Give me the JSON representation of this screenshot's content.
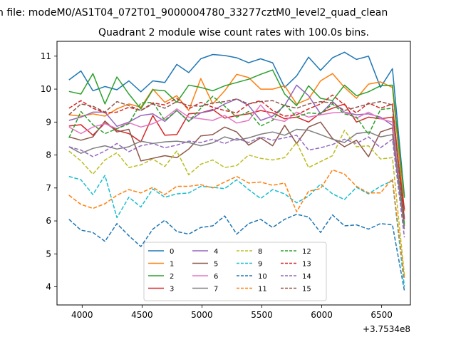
{
  "chart_data": {
    "type": "line",
    "suptitle": "n file: modeM0/AS1T04_072T01_9000004780_33277cztM0_level2_quad_clean",
    "title": "Quadrant 2 module wise count rates with 100.0s bins.",
    "xlabel": "",
    "ylabel": "",
    "x_offset_label": "+3.7534e8",
    "xlim": [
      3790,
      6740
    ],
    "ylim": [
      3.45,
      11.45
    ],
    "xticks": [
      4000,
      4500,
      5000,
      5500,
      6000,
      6500
    ],
    "yticks": [
      4,
      5,
      6,
      7,
      8,
      9,
      10,
      11
    ],
    "grid": false,
    "legend_position": "lower center",
    "legend_columns": 4,
    "x": [
      3890,
      3990,
      4090,
      4190,
      4290,
      4390,
      4490,
      4590,
      4690,
      4790,
      4890,
      4990,
      5090,
      5190,
      5290,
      5390,
      5490,
      5590,
      5690,
      5790,
      5890,
      5990,
      6090,
      6190,
      6290,
      6390,
      6490,
      6590,
      6690
    ],
    "series": [
      {
        "name": "0",
        "color": "#1f77b4",
        "dash": "solid",
        "values": [
          10.28,
          10.55,
          9.95,
          10.08,
          9.98,
          10.25,
          9.92,
          10.25,
          10.2,
          10.75,
          10.5,
          10.92,
          11.05,
          11.02,
          10.95,
          10.8,
          10.92,
          10.8,
          10.05,
          10.4,
          10.97,
          10.57,
          10.95,
          11.12,
          10.9,
          11.0,
          10.05,
          10.62,
          6.75
        ]
      },
      {
        "name": "1",
        "color": "#ff7f0e",
        "dash": "solid",
        "values": [
          9.22,
          9.18,
          9.25,
          9.18,
          9.4,
          9.55,
          9.45,
          10.0,
          9.6,
          9.8,
          9.35,
          10.32,
          9.55,
          9.95,
          10.45,
          10.35,
          10.0,
          10.0,
          10.1,
          9.55,
          9.7,
          10.25,
          10.47,
          10.05,
          9.72,
          10.15,
          10.22,
          10.05,
          6.3
        ]
      },
      {
        "name": "2",
        "color": "#2ca02c",
        "dash": "solid",
        "values": [
          9.93,
          9.85,
          10.47,
          9.55,
          10.37,
          9.85,
          9.4,
          9.98,
          9.95,
          9.6,
          10.12,
          10.05,
          9.95,
          10.1,
          10.2,
          10.3,
          10.45,
          10.58,
          9.85,
          9.5,
          10.1,
          9.72,
          9.65,
          10.12,
          9.8,
          9.92,
          10.1,
          10.12,
          6.7
        ]
      },
      {
        "name": "3",
        "color": "#d62728",
        "dash": "solid",
        "values": [
          8.88,
          8.92,
          8.6,
          8.97,
          8.75,
          8.65,
          8.4,
          9.2,
          8.6,
          8.62,
          9.25,
          9.28,
          9.38,
          9.12,
          9.2,
          9.25,
          9.35,
          9.28,
          9.1,
          9.15,
          9.0,
          9.28,
          9.42,
          9.55,
          9.0,
          9.15,
          9.1,
          9.15,
          6.35
        ]
      },
      {
        "name": "4",
        "color": "#9467bd",
        "dash": "solid",
        "values": [
          9.05,
          9.15,
          9.3,
          9.3,
          8.87,
          9.0,
          9.2,
          9.25,
          9.02,
          9.35,
          9.03,
          9.28,
          9.35,
          9.55,
          9.7,
          9.5,
          9.05,
          9.18,
          9.5,
          10.12,
          9.8,
          9.25,
          9.62,
          9.3,
          9.22,
          9.25,
          9.15,
          8.9,
          6.1
        ]
      },
      {
        "name": "5",
        "color": "#8c564b",
        "dash": "solid",
        "values": [
          8.55,
          8.45,
          8.55,
          9.03,
          8.7,
          8.78,
          7.82,
          7.9,
          7.98,
          7.92,
          8.18,
          8.58,
          8.62,
          8.85,
          8.7,
          8.3,
          8.52,
          8.28,
          8.9,
          8.35,
          8.85,
          9.0,
          8.5,
          8.25,
          8.45,
          7.95,
          8.7,
          8.82,
          5.85
        ]
      },
      {
        "name": "6",
        "color": "#e377c2",
        "dash": "solid",
        "values": [
          8.85,
          8.65,
          8.85,
          8.95,
          8.8,
          8.98,
          8.85,
          8.95,
          9.12,
          9.4,
          9.15,
          9.1,
          9.05,
          9.2,
          8.97,
          9.05,
          9.52,
          9.1,
          9.02,
          9.3,
          9.15,
          9.22,
          9.28,
          9.3,
          9.12,
          9.3,
          9.1,
          9.0,
          6.05
        ]
      },
      {
        "name": "7",
        "color": "#7f7f7f",
        "dash": "solid",
        "values": [
          8.25,
          8.05,
          8.2,
          8.28,
          8.18,
          8.25,
          8.42,
          8.35,
          8.4,
          8.42,
          8.38,
          8.28,
          8.37,
          8.55,
          8.45,
          8.52,
          8.63,
          8.7,
          8.6,
          8.78,
          8.75,
          8.62,
          8.48,
          8.38,
          8.65,
          8.7,
          8.55,
          8.62,
          5.75
        ]
      },
      {
        "name": "8",
        "color": "#bcbd22",
        "dash": "dashed",
        "values": [
          8.12,
          7.82,
          7.42,
          7.85,
          8.07,
          7.62,
          7.7,
          7.88,
          7.65,
          8.12,
          7.4,
          7.72,
          7.85,
          7.62,
          7.68,
          8.0,
          7.9,
          7.85,
          7.92,
          8.38,
          7.62,
          7.8,
          7.98,
          8.75,
          8.25,
          8.28,
          7.88,
          7.92,
          4.35
        ]
      },
      {
        "name": "9",
        "color": "#17becf",
        "dash": "dashed",
        "values": [
          7.35,
          7.25,
          6.8,
          7.38,
          6.1,
          6.72,
          6.42,
          6.97,
          6.72,
          6.82,
          6.85,
          7.05,
          7.02,
          6.98,
          7.25,
          6.95,
          6.68,
          6.95,
          6.82,
          6.55,
          6.75,
          7.12,
          6.82,
          6.65,
          7.02,
          6.82,
          7.05,
          7.22,
          4.0
        ]
      },
      {
        "name": "10",
        "color": "#1f77b4",
        "dash": "dashed",
        "values": [
          6.05,
          5.72,
          5.65,
          5.38,
          5.92,
          5.55,
          5.22,
          5.75,
          6.02,
          5.68,
          5.6,
          5.8,
          5.85,
          6.15,
          5.6,
          5.92,
          6.05,
          5.8,
          6.05,
          6.2,
          6.12,
          5.65,
          6.18,
          5.85,
          5.88,
          5.75,
          5.92,
          5.88,
          3.88
        ]
      },
      {
        "name": "11",
        "color": "#ff7f0e",
        "dash": "dashed",
        "values": [
          6.78,
          6.5,
          6.38,
          6.52,
          6.78,
          6.95,
          6.85,
          7.02,
          6.8,
          7.05,
          7.05,
          7.1,
          7.0,
          7.18,
          7.35,
          7.15,
          7.18,
          7.08,
          7.15,
          6.28,
          6.9,
          6.98,
          7.55,
          7.42,
          7.05,
          6.85,
          6.85,
          7.28,
          4.25
        ]
      },
      {
        "name": "12",
        "color": "#2ca02c",
        "dash": "dashed",
        "values": [
          8.52,
          9.32,
          8.92,
          8.65,
          8.8,
          8.95,
          9.58,
          9.6,
          9.05,
          9.35,
          9.02,
          9.42,
          9.78,
          9.48,
          9.15,
          9.32,
          8.88,
          9.05,
          9.55,
          9.15,
          9.28,
          9.25,
          9.55,
          9.25,
          9.15,
          8.62,
          9.38,
          9.42,
          5.9
        ]
      },
      {
        "name": "13",
        "color": "#d62728",
        "dash": "dashed",
        "values": [
          9.42,
          9.65,
          9.42,
          9.28,
          9.3,
          9.45,
          9.35,
          9.58,
          9.52,
          9.72,
          9.4,
          9.6,
          9.45,
          9.35,
          9.28,
          9.55,
          9.65,
          9.35,
          9.18,
          9.22,
          9.4,
          9.55,
          9.82,
          9.52,
          9.28,
          9.58,
          9.42,
          9.55,
          6.0
        ]
      },
      {
        "name": "14",
        "color": "#9467bd",
        "dash": "dashed",
        "values": [
          8.25,
          8.15,
          7.95,
          8.12,
          8.35,
          8.1,
          8.28,
          8.35,
          8.22,
          8.3,
          8.42,
          8.38,
          8.48,
          8.35,
          8.5,
          8.38,
          8.55,
          8.45,
          8.52,
          8.6,
          8.15,
          8.22,
          8.32,
          8.48,
          8.35,
          8.55,
          8.22,
          8.48,
          5.5
        ]
      },
      {
        "name": "15",
        "color": "#8c564b",
        "dash": "dashed",
        "values": [
          9.22,
          9.55,
          9.48,
          9.3,
          9.62,
          9.5,
          9.35,
          9.55,
          9.42,
          9.62,
          9.5,
          9.48,
          9.58,
          9.62,
          9.7,
          9.55,
          9.62,
          9.65,
          9.5,
          9.42,
          9.55,
          9.62,
          9.58,
          9.35,
          9.45,
          9.55,
          9.62,
          9.52,
          6.05
        ]
      }
    ]
  }
}
